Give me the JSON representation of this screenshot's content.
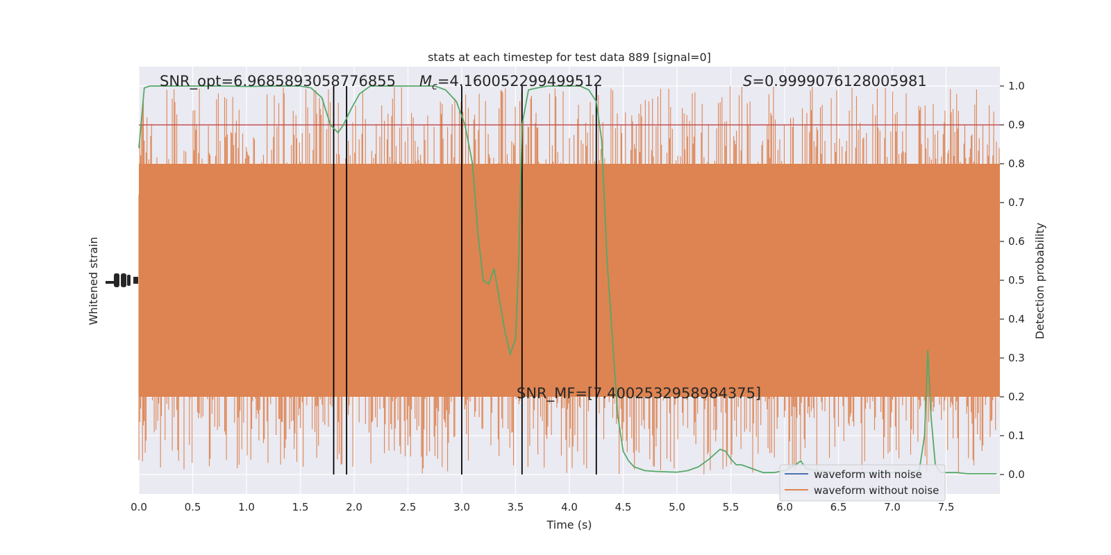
{
  "chart_data": {
    "type": "line",
    "title": "stats at each timestep for test data 889 [signal=0]",
    "xlabel": "Time (s)",
    "ylabel_left": "Whitened strain",
    "ylabel_right": "Detection probability",
    "xlim": [
      0.0,
      8.0
    ],
    "ylim_right": [
      -0.05,
      1.05
    ],
    "x_ticks": [
      "0.0",
      "0.5",
      "1.0",
      "1.5",
      "2.0",
      "2.5",
      "3.0",
      "3.5",
      "4.0",
      "4.5",
      "5.0",
      "5.5",
      "6.0",
      "6.5",
      "7.0",
      "7.5"
    ],
    "y_ticks_right": [
      "0.0",
      "0.1",
      "0.2",
      "0.3",
      "0.4",
      "0.5",
      "0.6",
      "0.7",
      "0.8",
      "0.9",
      "1.0"
    ],
    "grid": true,
    "legend_position": "lower-right",
    "legend": [
      "waveform with noise",
      "waveform without noise"
    ],
    "annotations": {
      "snr_opt": "SNR_opt=6.9685893058776855",
      "mc_symbol": "M",
      "mc_subscript": "c",
      "mc_value": "=4.160052299499512",
      "s_symbol": "S",
      "s_value": "=0.9999076128005981",
      "snr_mf": "SNR_MF=[7.4002532958984375]"
    },
    "threshold": 0.9,
    "vertical_lines_x": [
      1.81,
      1.93,
      3.0,
      3.56,
      4.25
    ],
    "series": [
      {
        "name": "waveform with noise",
        "color": "#4c72b0"
      },
      {
        "name": "waveform without noise",
        "color": "#dd8452"
      },
      {
        "color": "#55a868",
        "x": [
          0.0,
          0.05,
          0.1,
          0.2,
          0.3,
          0.5,
          0.8,
          1.0,
          1.3,
          1.5,
          1.6,
          1.7,
          1.78,
          1.85,
          1.9,
          1.97,
          2.05,
          2.15,
          2.25,
          2.4,
          2.6,
          2.75,
          2.85,
          2.95,
          3.03,
          3.1,
          3.15,
          3.2,
          3.25,
          3.3,
          3.35,
          3.4,
          3.45,
          3.5,
          3.53,
          3.56,
          3.62,
          3.7,
          3.8,
          3.9,
          4.0,
          4.1,
          4.18,
          4.25,
          4.3,
          4.35,
          4.4,
          4.45,
          4.5,
          4.55,
          4.6,
          4.7,
          4.8,
          4.9,
          5.0,
          5.1,
          5.2,
          5.3,
          5.4,
          5.45,
          5.5,
          5.55,
          5.6,
          5.7,
          5.8,
          5.9,
          6.0,
          6.1,
          6.15,
          6.2,
          6.3,
          6.5,
          6.7,
          6.9,
          7.1,
          7.25,
          7.3,
          7.33,
          7.36,
          7.4,
          7.45,
          7.5,
          7.6,
          7.7,
          7.8,
          7.97
        ],
        "values": [
          0.84,
          0.995,
          1.0,
          1.0,
          1.0,
          1.0,
          1.0,
          0.999,
          1.0,
          1.0,
          0.995,
          0.97,
          0.9,
          0.88,
          0.9,
          0.94,
          0.98,
          1.0,
          1.0,
          1.0,
          1.0,
          1.0,
          0.99,
          0.96,
          0.9,
          0.8,
          0.62,
          0.5,
          0.49,
          0.53,
          0.45,
          0.37,
          0.31,
          0.35,
          0.55,
          0.9,
          0.99,
          0.995,
          1.0,
          1.0,
          1.0,
          1.0,
          0.99,
          0.96,
          0.86,
          0.55,
          0.35,
          0.15,
          0.06,
          0.035,
          0.02,
          0.01,
          0.008,
          0.007,
          0.006,
          0.01,
          0.02,
          0.04,
          0.065,
          0.06,
          0.04,
          0.025,
          0.025,
          0.015,
          0.005,
          0.005,
          0.01,
          0.025,
          0.035,
          0.015,
          0.01,
          0.005,
          0.005,
          0.005,
          0.005,
          0.01,
          0.1,
          0.32,
          0.15,
          0.025,
          0.005,
          0.005,
          0.005,
          0.002,
          0.002,
          0.002
        ]
      }
    ]
  }
}
